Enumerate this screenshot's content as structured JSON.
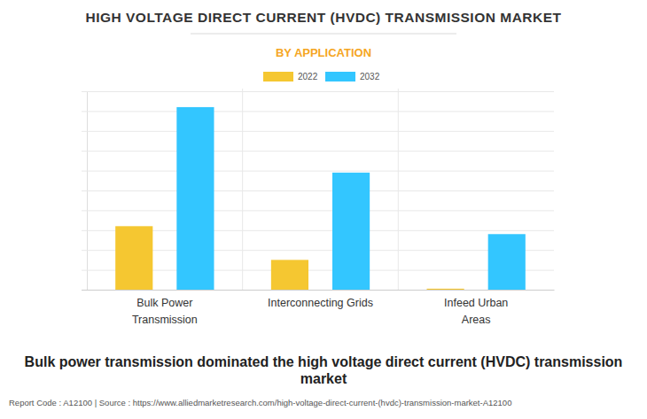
{
  "chart_data": {
    "type": "bar",
    "title": "HIGH VOLTAGE DIRECT CURRENT (HVDC) TRANSMISSION MARKET",
    "subtitle": "BY APPLICATION",
    "categories": [
      "Bulk Power Transmission",
      "Interconnecting Grids",
      "Infeed Urban Areas"
    ],
    "series": [
      {
        "name": "2022",
        "color": "#f5c731",
        "values": [
          3.2,
          1.5,
          0.05
        ]
      },
      {
        "name": "2032",
        "color": "#33c6ff",
        "values": [
          9.2,
          5.9,
          2.8
        ]
      }
    ],
    "ylim": [
      0,
      10
    ],
    "yticks": [
      0,
      1,
      2,
      3,
      4,
      5,
      6,
      7,
      8,
      9,
      10
    ],
    "grid": true,
    "tick_labels": "x",
    "legend": "top",
    "annotations": [
      "Bulk power transmission dominated the high voltage direct current (HVDC) transmission market",
      "Report Code : A12100 | Source : https://www.alliedmarketresearch.com/high-voltage-direct-current-(hvdc)-transmission-market-A12100"
    ]
  }
}
